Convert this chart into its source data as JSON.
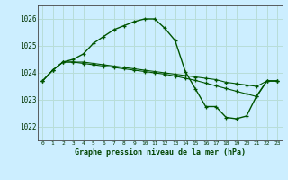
{
  "title": "Graphe pression niveau de la mer (hPa)",
  "bg_color": "#cceeff",
  "grid_color": "#b8ddd8",
  "line_color": "#005500",
  "xlim": [
    -0.5,
    23.5
  ],
  "ylim": [
    1021.5,
    1026.5
  ],
  "yticks": [
    1022,
    1023,
    1024,
    1025,
    1026
  ],
  "xticks": [
    0,
    1,
    2,
    3,
    4,
    5,
    6,
    7,
    8,
    9,
    10,
    11,
    12,
    13,
    14,
    15,
    16,
    17,
    18,
    19,
    20,
    21,
    22,
    23
  ],
  "series1": [
    1023.7,
    1024.1,
    1024.4,
    1024.5,
    1024.7,
    1025.1,
    1025.35,
    1025.6,
    1025.75,
    1025.9,
    1026.0,
    1026.0,
    1025.65,
    1025.2,
    1024.05,
    1023.4,
    1022.75,
    1022.75,
    1022.35,
    1022.3,
    1022.4,
    1023.15,
    1023.7,
    1023.7
  ],
  "series2": [
    1023.7,
    1024.1,
    1024.4,
    1024.4,
    1024.4,
    1024.35,
    1024.3,
    1024.25,
    1024.2,
    1024.15,
    1024.1,
    1024.05,
    1024.0,
    1023.95,
    1023.9,
    1023.85,
    1023.8,
    1023.75,
    1023.65,
    1023.6,
    1023.55,
    1023.5,
    1023.7,
    1023.7
  ],
  "series3": [
    1023.7,
    1024.1,
    1024.4,
    1024.4,
    1024.35,
    1024.3,
    1024.25,
    1024.2,
    1024.15,
    1024.1,
    1024.05,
    1024.0,
    1023.95,
    1023.88,
    1023.8,
    1023.72,
    1023.62,
    1023.52,
    1023.42,
    1023.32,
    1023.22,
    1023.12,
    1023.7,
    1023.7
  ]
}
